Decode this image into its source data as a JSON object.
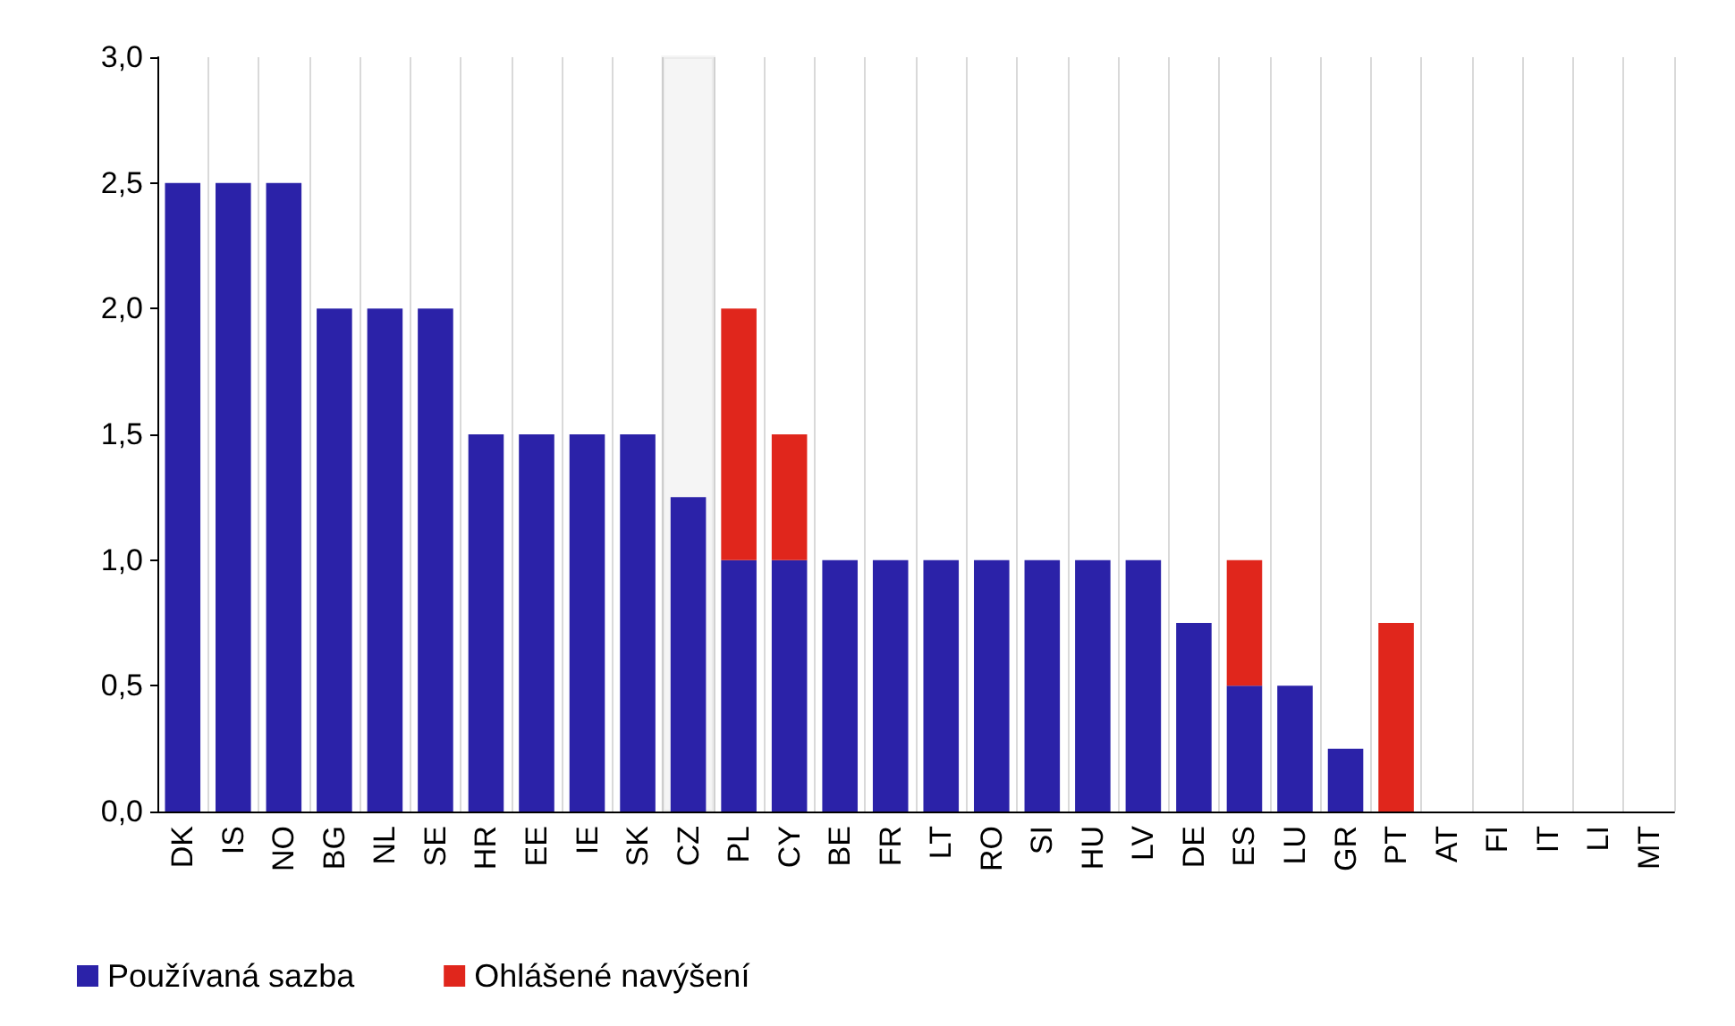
{
  "chart_data": {
    "type": "bar",
    "stacked": true,
    "categories": [
      "DK",
      "IS",
      "NO",
      "BG",
      "NL",
      "SE",
      "HR",
      "EE",
      "IE",
      "SK",
      "CZ",
      "PL",
      "CY",
      "BE",
      "FR",
      "LT",
      "RO",
      "SI",
      "HU",
      "LV",
      "DE",
      "ES",
      "LU",
      "GR",
      "PT",
      "AT",
      "FI",
      "IT",
      "LI",
      "MT"
    ],
    "series": [
      {
        "name": "Používaná sazba",
        "color": "#2b22a8",
        "values": [
          2.5,
          2.5,
          2.5,
          2,
          2,
          2,
          1.5,
          1.5,
          1.5,
          1.5,
          1.25,
          1,
          1,
          1,
          1,
          1,
          1,
          1,
          1,
          1,
          0.75,
          0.5,
          0.5,
          0.25,
          0,
          0,
          0,
          0,
          0,
          0
        ]
      },
      {
        "name": "Ohlášené navýšení",
        "color": "#e0261c",
        "values": [
          null,
          null,
          null,
          null,
          null,
          null,
          null,
          null,
          null,
          null,
          null,
          1,
          0.5,
          null,
          null,
          null,
          null,
          null,
          null,
          null,
          null,
          0.5,
          null,
          null,
          0.75,
          null,
          null,
          null,
          null,
          null
        ]
      }
    ],
    "ylim": [
      0,
      3
    ],
    "yticks": [
      {
        "value": 0,
        "label": "0,0"
      },
      {
        "value": 0.5,
        "label": "0,5"
      },
      {
        "value": 1,
        "label": "1,0"
      },
      {
        "value": 1.5,
        "label": "1,5"
      },
      {
        "value": 2,
        "label": "2,0"
      },
      {
        "value": 2.5,
        "label": "2,5"
      },
      {
        "value": 3,
        "label": "3,0"
      }
    ],
    "bands": [
      {
        "axis": "x",
        "from": "CZ",
        "to": "CZ",
        "color": "#000000"
      }
    ],
    "grid": "x",
    "legend": "bottom left"
  }
}
